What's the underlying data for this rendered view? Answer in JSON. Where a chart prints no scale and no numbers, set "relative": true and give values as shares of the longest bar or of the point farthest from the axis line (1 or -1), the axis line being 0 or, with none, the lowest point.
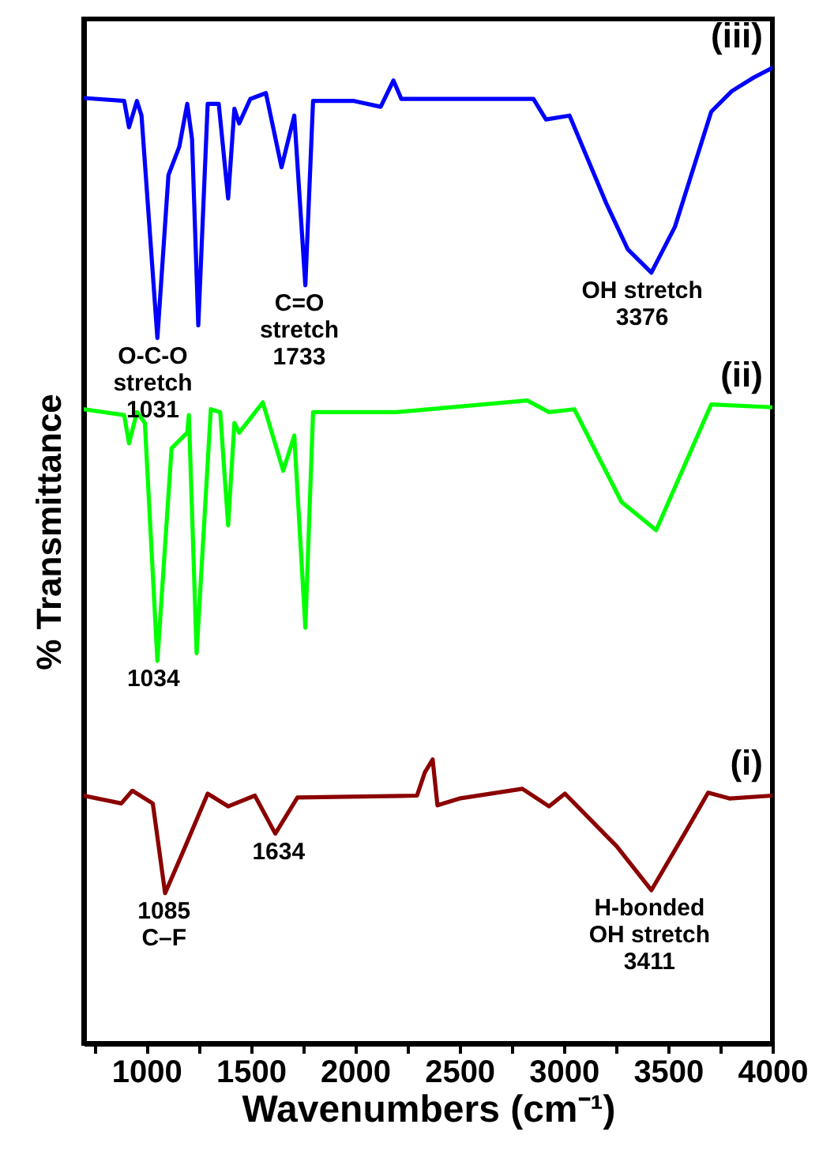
{
  "chart_data": {
    "type": "line",
    "xlabel": "Wavenumbers (cm⁻¹)",
    "ylabel": "% Transmittance",
    "relative": true,
    "xlim": [
      700,
      4000
    ],
    "xticks": [
      {
        "value": 750,
        "label": null
      },
      1000,
      {
        "value": 1250,
        "label": null
      },
      1500,
      {
        "value": 1750,
        "label": null
      },
      2000,
      {
        "value": 2250,
        "label": null
      },
      2500,
      {
        "value": 2750,
        "label": null
      },
      3000,
      {
        "value": 3250,
        "label": null
      },
      3500,
      {
        "value": 3750,
        "label": null
      },
      4000
    ],
    "marker": "none",
    "line_style": "solid",
    "series": [
      {
        "name": "(iii)",
        "color": "#0000ff",
        "x": [
          700,
          894,
          917,
          955,
          977,
          1053,
          1106,
          1158,
          1196,
          1219,
          1249,
          1294,
          1347,
          1392,
          1422,
          1445,
          1498,
          1573,
          1648,
          1709,
          1762,
          1799,
          1995,
          2123,
          2184,
          2222,
          2855,
          2915,
          3028,
          3202,
          3307,
          3420,
          3533,
          3707,
          3805,
          3911,
          4000
        ],
        "values": [
          0.969,
          0.966,
          0.939,
          0.966,
          0.951,
          0.723,
          0.89,
          0.919,
          0.963,
          0.927,
          0.736,
          0.963,
          0.963,
          0.866,
          0.958,
          0.943,
          0.968,
          0.974,
          0.898,
          0.951,
          0.777,
          0.966,
          0.966,
          0.96,
          0.987,
          0.968,
          0.968,
          0.947,
          0.951,
          0.862,
          0.814,
          0.79,
          0.837,
          0.955,
          0.976,
          0.99,
          1
        ]
      },
      {
        "name": "(ii)",
        "color": "#00ff00",
        "x": [
          700,
          894,
          917,
          955,
          993,
          1053,
          1121,
          1196,
          1204,
          1241,
          1309,
          1354,
          1392,
          1422,
          1445,
          1558,
          1656,
          1709,
          1762,
          1799,
          2199,
          2825,
          2930,
          3051,
          3277,
          3443,
          3707,
          4000
        ],
        "values": [
          0.65,
          0.644,
          0.615,
          0.647,
          0.636,
          0.392,
          0.61,
          0.626,
          0.644,
          0.4,
          0.65,
          0.647,
          0.531,
          0.636,
          0.626,
          0.657,
          0.587,
          0.623,
          0.426,
          0.647,
          0.647,
          0.659,
          0.647,
          0.65,
          0.555,
          0.526,
          0.655,
          0.652
        ]
      },
      {
        "name": "(i)",
        "color": "#8b0000",
        "x": [
          700,
          880,
          933,
          1031,
          1090,
          1181,
          1294,
          1392,
          1520,
          1618,
          1724,
          2297,
          2335,
          2372,
          2395,
          2500,
          2802,
          2930,
          3006,
          3254,
          3420,
          3579,
          3692,
          3797,
          4000
        ],
        "values": [
          0.254,
          0.246,
          0.259,
          0.246,
          0.154,
          0.199,
          0.256,
          0.243,
          0.254,
          0.215,
          0.252,
          0.254,
          0.278,
          0.291,
          0.244,
          0.251,
          0.261,
          0.243,
          0.256,
          0.202,
          0.157,
          0.215,
          0.257,
          0.251,
          0.254
        ]
      }
    ],
    "annotations": [
      {
        "text": "O-C-O\nstretch\n1031",
        "x": 1031,
        "y": 0.723
      },
      {
        "text": "C=O\nstretch\n1733",
        "x": 1733,
        "y": 0.777
      },
      {
        "text": "OH stretch\n3376",
        "x": 3376,
        "y": 0.79
      },
      {
        "text": "1034",
        "x": 1034,
        "y": 0.392
      },
      {
        "text": "1085\nC–F",
        "x": 1085,
        "y": 0.154
      },
      {
        "text": "1634",
        "x": 1634,
        "y": 0.215
      },
      {
        "text": "H-bonded\nOH stretch\n3411",
        "x": 3411,
        "y": 0.157
      }
    ]
  }
}
